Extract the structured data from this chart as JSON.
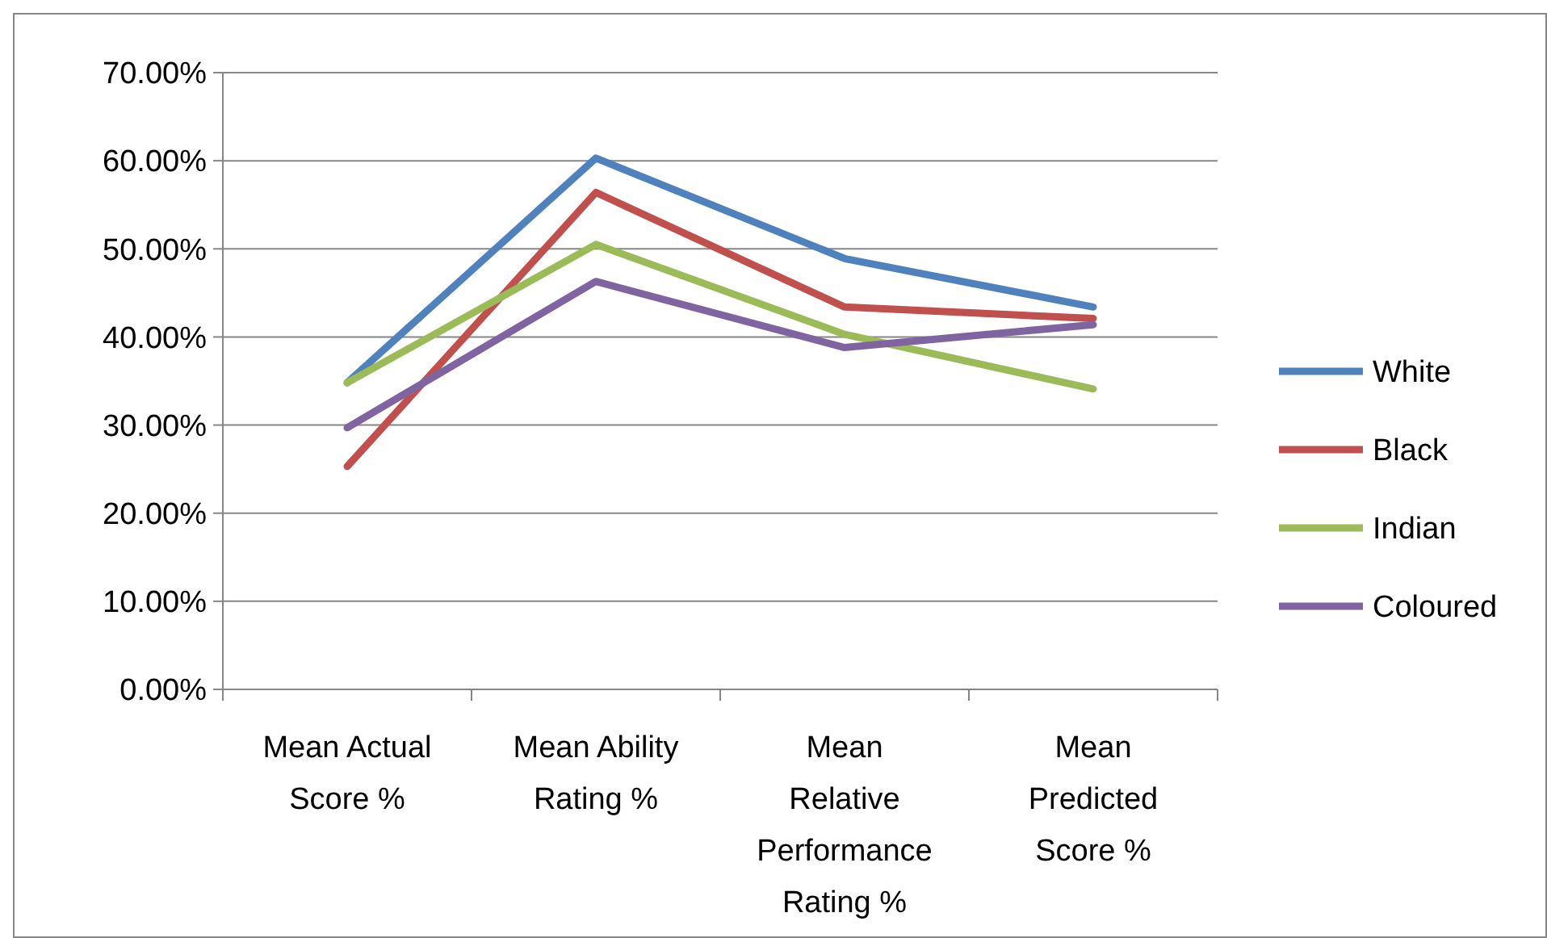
{
  "chart_data": {
    "type": "line",
    "categories": [
      "Mean Actual Score %",
      "Mean Ability Rating %",
      "Mean Relative Performance Rating %",
      "Mean Predicted Score %"
    ],
    "series": [
      {
        "name": "White",
        "color": "#4f81bd",
        "values": [
          34.8,
          60.3,
          48.9,
          43.4
        ]
      },
      {
        "name": "Black",
        "color": "#c0504d",
        "values": [
          25.3,
          56.4,
          43.4,
          42.1
        ]
      },
      {
        "name": "Indian",
        "color": "#9bbb59",
        "values": [
          34.8,
          50.5,
          40.3,
          34.1
        ]
      },
      {
        "name": "Coloured",
        "color": "#8064a2",
        "values": [
          29.7,
          46.3,
          38.8,
          41.4
        ]
      }
    ],
    "ylim": [
      0,
      70
    ],
    "yticks": [
      {
        "value": 0,
        "label": "0.00%"
      },
      {
        "value": 10,
        "label": "10.00%"
      },
      {
        "value": 20,
        "label": "20.00%"
      },
      {
        "value": 30,
        "label": "30.00%"
      },
      {
        "value": 40,
        "label": "40.00%"
      },
      {
        "value": 50,
        "label": "50.00%"
      },
      {
        "value": 60,
        "label": "60.00%"
      },
      {
        "value": 70,
        "label": "70.00%"
      }
    ],
    "grid": "y",
    "legend": "right",
    "marker": "none",
    "line_style": "solid"
  }
}
